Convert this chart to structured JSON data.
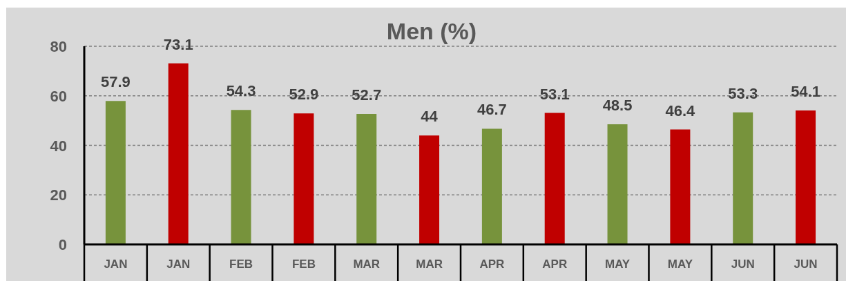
{
  "chart_data": {
    "type": "bar",
    "title": "Men (%)",
    "categories": [
      "JAN",
      "JAN",
      "FEB",
      "FEB",
      "MAR",
      "MAR",
      "APR",
      "APR",
      "MAY",
      "MAY",
      "JUN",
      "JUN"
    ],
    "values": [
      57.9,
      73.1,
      54.3,
      52.9,
      52.7,
      44,
      46.7,
      53.1,
      48.5,
      46.4,
      53.3,
      54.1
    ],
    "colors": [
      "#77933c",
      "#c00000",
      "#77933c",
      "#c00000",
      "#77933c",
      "#c00000",
      "#77933c",
      "#c00000",
      "#77933c",
      "#c00000",
      "#77933c",
      "#c00000"
    ],
    "ylim": [
      0,
      80
    ],
    "yticks": [
      0,
      20,
      40,
      60,
      80
    ],
    "grid": "y",
    "data_labels": true
  }
}
